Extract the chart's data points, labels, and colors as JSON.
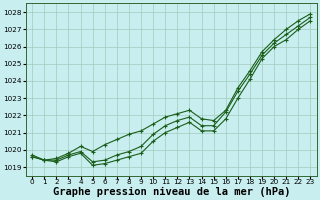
{
  "title": "Graphe pression niveau de la mer (hPa)",
  "x_labels": [
    "0",
    "1",
    "2",
    "3",
    "4",
    "5",
    "6",
    "7",
    "8",
    "9",
    "10",
    "11",
    "12",
    "13",
    "14",
    "15",
    "16",
    "17",
    "18",
    "19",
    "20",
    "21",
    "22",
    "23"
  ],
  "xlim": [
    -0.5,
    23.5
  ],
  "ylim": [
    1018.5,
    1028.5
  ],
  "yticks": [
    1019,
    1020,
    1021,
    1022,
    1023,
    1024,
    1025,
    1026,
    1027,
    1028
  ],
  "bg_color": "#c8eef0",
  "grid_color": "#a0ccbb",
  "line_color": "#1a5e1a",
  "line1": [
    1019.6,
    1019.4,
    1019.3,
    1019.6,
    1019.8,
    1019.1,
    1019.2,
    1019.4,
    1019.6,
    1019.8,
    1020.5,
    1021.0,
    1021.3,
    1021.6,
    1021.1,
    1021.1,
    1021.8,
    1023.0,
    1024.1,
    1025.3,
    1026.0,
    1026.4,
    1027.0,
    1027.5
  ],
  "line2": [
    1019.6,
    1019.4,
    1019.4,
    1019.7,
    1019.9,
    1019.3,
    1019.4,
    1019.7,
    1019.9,
    1020.2,
    1020.9,
    1021.4,
    1021.7,
    1021.9,
    1021.4,
    1021.4,
    1022.2,
    1023.4,
    1024.4,
    1025.5,
    1026.2,
    1026.7,
    1027.2,
    1027.7
  ],
  "line3": [
    1019.7,
    1019.4,
    1019.5,
    1019.8,
    1020.2,
    1019.9,
    1020.3,
    1020.6,
    1020.9,
    1021.1,
    1021.5,
    1021.9,
    1022.1,
    1022.3,
    1021.8,
    1021.7,
    1022.3,
    1023.6,
    1024.6,
    1025.7,
    1026.4,
    1027.0,
    1027.5,
    1027.9
  ],
  "marker": "+",
  "marker_size": 3.5,
  "linewidth": 0.8,
  "title_fontsize": 7.5,
  "tick_fontsize": 5.2,
  "fig_width": 3.2,
  "fig_height": 2.0,
  "dpi": 100
}
